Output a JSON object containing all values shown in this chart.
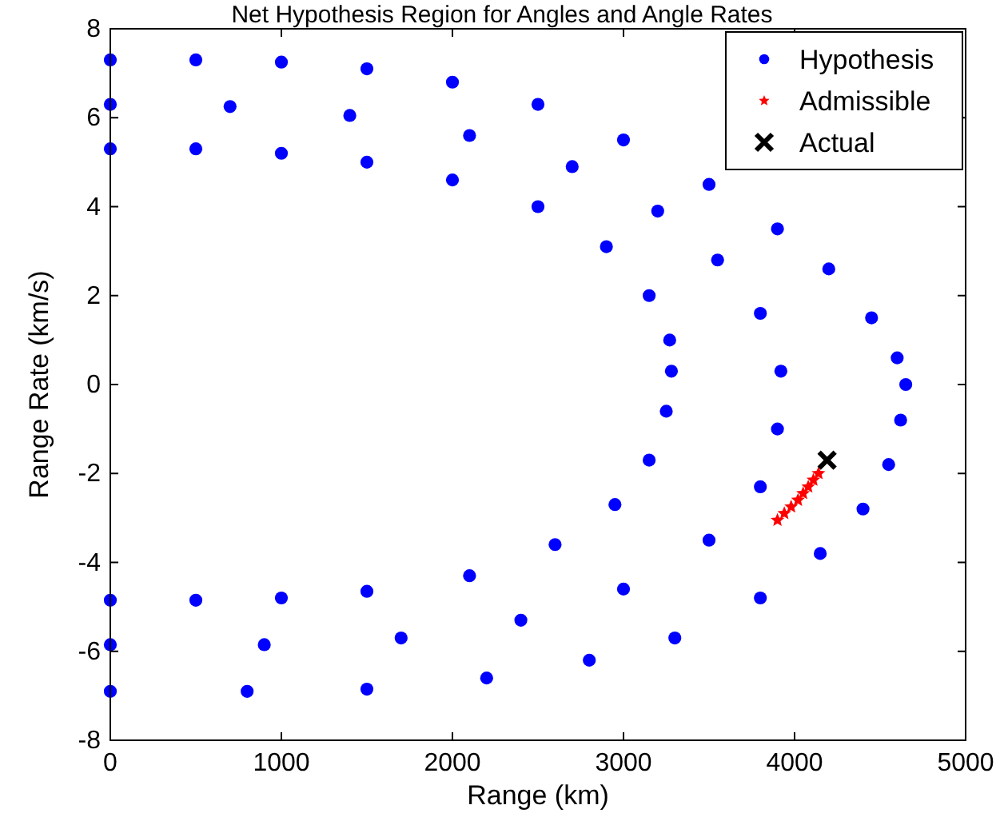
{
  "chart_data": {
    "type": "scatter",
    "title": "Net Hypothesis Region for Angles and Angle Rates",
    "xlabel": "Range (km)",
    "ylabel": "Range Rate (km/s)",
    "xlim": [
      0,
      5000
    ],
    "ylim": [
      -8,
      8
    ],
    "xticks": [
      0,
      1000,
      2000,
      3000,
      4000,
      5000
    ],
    "yticks": [
      -8,
      -6,
      -4,
      -2,
      0,
      2,
      4,
      6,
      8
    ],
    "grid": false,
    "legend": "top right",
    "series": [
      {
        "name": "Hypothesis",
        "color": "#0000ff",
        "marker": "circle",
        "x": [
          0,
          500,
          1000,
          1500,
          2000,
          2500,
          3000,
          3500,
          3900,
          4200,
          4450,
          4600,
          4650,
          4620,
          4550,
          4400,
          4150,
          3800,
          3300,
          2800,
          2200,
          1500,
          800,
          0,
          0,
          500,
          1000,
          1500,
          2000,
          2500,
          2900,
          3150,
          3270,
          3280,
          3250,
          3150,
          2950,
          2600,
          2100,
          1500,
          1000,
          500,
          0,
          0,
          700,
          1400,
          2100,
          2700,
          3200,
          3550,
          3800,
          3920,
          3900,
          3800,
          3500,
          3000,
          2400,
          1700,
          900,
          0
        ],
        "values": [
          7.3,
          7.3,
          7.25,
          7.1,
          6.8,
          6.3,
          5.5,
          4.5,
          3.5,
          2.6,
          1.5,
          0.6,
          0,
          -0.8,
          -1.8,
          -2.8,
          -3.8,
          -4.8,
          -5.7,
          -6.2,
          -6.6,
          -6.85,
          -6.9,
          -6.9,
          5.3,
          5.3,
          5.2,
          5.0,
          4.6,
          4.0,
          3.1,
          2.0,
          1.0,
          0.3,
          -0.6,
          -1.7,
          -2.7,
          -3.6,
          -4.3,
          -4.65,
          -4.8,
          -4.85,
          -4.85,
          6.3,
          6.25,
          6.05,
          5.6,
          4.9,
          3.9,
          2.8,
          1.6,
          0.3,
          -1.0,
          -2.3,
          -3.5,
          -4.6,
          -5.3,
          -5.7,
          -5.85,
          -5.85
        ]
      },
      {
        "name": "Admissible",
        "color": "#ff0000",
        "marker": "star",
        "x": [
          3900,
          3940,
          3980,
          4020,
          4050,
          4080,
          4110,
          4140
        ],
        "values": [
          -3.05,
          -2.9,
          -2.75,
          -2.6,
          -2.45,
          -2.3,
          -2.15,
          -2.0
        ]
      },
      {
        "name": "Actual",
        "color": "#000000",
        "marker": "cross",
        "x": [
          4190
        ],
        "values": [
          -1.7
        ]
      }
    ]
  }
}
